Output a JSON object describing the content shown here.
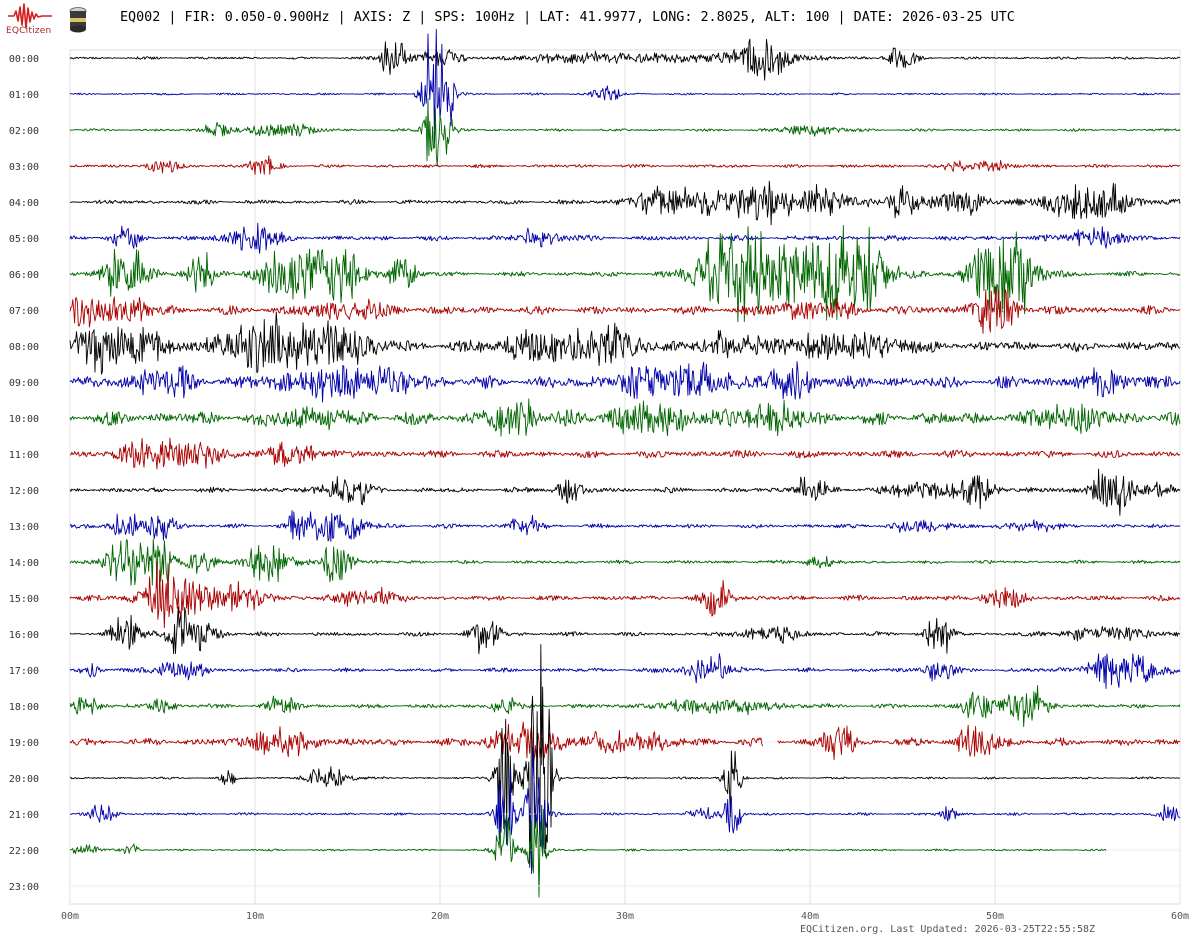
{
  "header": {
    "logo_text": "EQCitizen",
    "title": "EQ002 | FIR: 0.050-0.900Hz | AXIS: Z | SPS: 100Hz | LAT: 41.9977, LONG: 2.8025, ALT: 100 | DATE: 2026-03-25 UTC"
  },
  "footer": {
    "updated": "EQCitizen.org. Last Updated: 2026-03-25T22:55:58Z"
  },
  "chart_data": {
    "type": "line",
    "title": "EQ002 | FIR: 0.050-0.900Hz | AXIS: Z | SPS: 100Hz | LAT: 41.9977, LONG: 2.8025, ALT: 100 | DATE: 2026-03-25 UTC",
    "xlabel": "",
    "ylabel": "",
    "x_range_minutes": [
      0,
      60
    ],
    "x_ticks": [
      "00m",
      "10m",
      "20m",
      "30m",
      "40m",
      "50m",
      "60m"
    ],
    "grid": true,
    "color_cycle": [
      "#000000",
      "#0000aa",
      "#006600",
      "#aa0000"
    ],
    "rows": [
      {
        "label": "00:00",
        "noise": 1.5,
        "end": 60,
        "events": [
          [
            32,
            12,
            3,
            6,
            1
          ],
          [
            17.5,
            1,
            0.5,
            20,
            2
          ],
          [
            20,
            1.5,
            0.8,
            10,
            3
          ],
          [
            37.5,
            2,
            0.6,
            18,
            4
          ],
          [
            45,
            1,
            0.5,
            12,
            5
          ]
        ]
      },
      {
        "label": "01:00",
        "noise": 1.2,
        "end": 60,
        "events": [
          [
            19.5,
            0.6,
            0.3,
            75,
            6
          ],
          [
            20.3,
            0.5,
            0.3,
            55,
            7
          ],
          [
            29,
            1,
            0.5,
            8,
            8
          ]
        ]
      },
      {
        "label": "02:00",
        "noise": 1.5,
        "end": 60,
        "events": [
          [
            11.5,
            2,
            1,
            10,
            9
          ],
          [
            8,
            1,
            0.5,
            8,
            10
          ],
          [
            19.6,
            0.5,
            0.3,
            50,
            11
          ],
          [
            20.3,
            0.4,
            0.3,
            35,
            12
          ],
          [
            40,
            2,
            1,
            6,
            13
          ]
        ]
      },
      {
        "label": "03:00",
        "noise": 2,
        "end": 60,
        "events": [
          [
            49,
            2.5,
            0.8,
            7,
            14
          ],
          [
            10.5,
            1,
            0.5,
            10,
            15
          ],
          [
            5,
            1,
            0.5,
            8,
            16
          ]
        ]
      },
      {
        "label": "04:00",
        "noise": 2.5,
        "end": 60,
        "events": [
          [
            33,
            3,
            1.5,
            18,
            17
          ],
          [
            37,
            1.5,
            0.8,
            20,
            18
          ],
          [
            40,
            3,
            1.5,
            16,
            19
          ],
          [
            45,
            1,
            0.5,
            20,
            20
          ],
          [
            55,
            3,
            1.5,
            22,
            21
          ],
          [
            48,
            2,
            1,
            14,
            22
          ]
        ]
      },
      {
        "label": "05:00",
        "noise": 3,
        "end": 60,
        "events": [
          [
            10,
            1.5,
            0.8,
            16,
            23
          ],
          [
            3,
            1,
            0.5,
            10,
            24
          ],
          [
            25.5,
            1.5,
            0.8,
            8,
            25
          ],
          [
            55.5,
            2,
            1,
            10,
            26
          ]
        ]
      },
      {
        "label": "06:00",
        "noise": 3,
        "end": 60,
        "events": [
          [
            36,
            2.5,
            1.2,
            55,
            27
          ],
          [
            39,
            1.5,
            0.8,
            30,
            28
          ],
          [
            42,
            2.5,
            1.2,
            55,
            29
          ],
          [
            50.5,
            2,
            1,
            55,
            30
          ],
          [
            12,
            2,
            1,
            30,
            31
          ],
          [
            14.5,
            1.5,
            0.8,
            30,
            32
          ],
          [
            3,
            1.5,
            0.8,
            25,
            33
          ],
          [
            7,
            1,
            0.5,
            20,
            34
          ],
          [
            18,
            1,
            0.5,
            18,
            35
          ]
        ]
      },
      {
        "label": "07:00",
        "noise": 5,
        "end": 60,
        "events": [
          [
            2,
            3,
            1.5,
            14,
            36
          ],
          [
            15,
            3,
            1.5,
            10,
            37
          ],
          [
            40,
            3,
            1.5,
            10,
            38
          ],
          [
            50,
            1.5,
            0.8,
            25,
            39
          ]
        ]
      },
      {
        "label": "08:00",
        "noise": 6,
        "end": 60,
        "events": [
          [
            2.5,
            3,
            1.5,
            25,
            40
          ],
          [
            10,
            3,
            1.5,
            20,
            41
          ],
          [
            12.5,
            3,
            1.5,
            18,
            42
          ],
          [
            15,
            2,
            1,
            16,
            43
          ],
          [
            27,
            5,
            2,
            20,
            44
          ],
          [
            42,
            4,
            2,
            14,
            45
          ],
          [
            36,
            2,
            1,
            12,
            46
          ]
        ]
      },
      {
        "label": "09:00",
        "noise": 7,
        "end": 60,
        "events": [
          [
            15,
            5,
            2,
            16,
            47
          ],
          [
            32.5,
            4,
            2,
            16,
            48
          ],
          [
            39,
            2,
            1,
            14,
            49
          ],
          [
            5,
            2,
            1,
            12,
            50
          ],
          [
            56,
            2,
            1,
            10,
            51
          ]
        ]
      },
      {
        "label": "10:00",
        "noise": 8,
        "end": 60,
        "events": [
          [
            24,
            1.5,
            0.8,
            22,
            52
          ],
          [
            31.5,
            3,
            1.5,
            14,
            53
          ],
          [
            38,
            2,
            1,
            16,
            54
          ],
          [
            13,
            2,
            1,
            12,
            55
          ],
          [
            54,
            2,
            1,
            14,
            56
          ]
        ]
      },
      {
        "label": "11:00",
        "noise": 4.5,
        "end": 60,
        "events": [
          [
            6,
            3,
            1.5,
            14,
            57
          ],
          [
            12,
            2,
            1,
            10,
            58
          ],
          [
            4,
            1.5,
            0.8,
            8,
            59
          ]
        ]
      },
      {
        "label": "12:00",
        "noise": 3,
        "end": 60,
        "events": [
          [
            15,
            1.5,
            0.8,
            16,
            60
          ],
          [
            27,
            1,
            0.5,
            12,
            61
          ],
          [
            40,
            1,
            0.5,
            16,
            62
          ],
          [
            47,
            4,
            2,
            8,
            63
          ],
          [
            56.3,
            1.5,
            0.8,
            24,
            64
          ],
          [
            58.9,
            0.8,
            0.4,
            12,
            65
          ],
          [
            49,
            1,
            0.5,
            12,
            66
          ]
        ]
      },
      {
        "label": "13:00",
        "noise": 2.5,
        "end": 60,
        "events": [
          [
            14.5,
            1.5,
            0.8,
            24,
            67
          ],
          [
            12.5,
            1,
            0.5,
            15,
            68
          ],
          [
            3,
            1,
            0.5,
            14,
            69
          ],
          [
            5,
            1,
            0.5,
            16,
            70
          ],
          [
            24.5,
            1,
            0.5,
            10,
            71
          ],
          [
            46,
            2,
            1,
            6,
            72
          ],
          [
            52,
            1.5,
            0.8,
            6,
            73
          ]
        ]
      },
      {
        "label": "14:00",
        "noise": 2,
        "end": 60,
        "events": [
          [
            3,
            1.5,
            0.8,
            26,
            74
          ],
          [
            4.8,
            1,
            0.5,
            22,
            75
          ],
          [
            10.8,
            1.5,
            0.8,
            22,
            76
          ],
          [
            14.5,
            1,
            0.5,
            25,
            77
          ],
          [
            7,
            1,
            0.5,
            12,
            78
          ],
          [
            40.5,
            1,
            0.5,
            6,
            79
          ]
        ]
      },
      {
        "label": "15:00",
        "noise": 3,
        "end": 60,
        "events": [
          [
            6,
            2.5,
            1.2,
            24,
            80
          ],
          [
            9.5,
            1.5,
            0.8,
            16,
            81
          ],
          [
            4.8,
            1,
            0.5,
            16,
            82
          ],
          [
            16,
            2,
            1,
            10,
            83
          ],
          [
            35,
            1,
            0.5,
            18,
            84
          ],
          [
            50.5,
            1.5,
            0.8,
            10,
            85
          ]
        ]
      },
      {
        "label": "16:00",
        "noise": 2.5,
        "end": 60,
        "events": [
          [
            47,
            0.8,
            0.4,
            26,
            86
          ],
          [
            22.5,
            1,
            0.5,
            20,
            87
          ],
          [
            3,
            1,
            0.5,
            20,
            88
          ],
          [
            6.5,
            1.5,
            0.8,
            30,
            89
          ],
          [
            38,
            2,
            1,
            8,
            90
          ],
          [
            56,
            3,
            1.5,
            7,
            91
          ]
        ]
      },
      {
        "label": "17:00",
        "noise": 2.5,
        "end": 60,
        "events": [
          [
            57,
            2.5,
            1.2,
            20,
            92
          ],
          [
            34.5,
            1.5,
            0.8,
            16,
            93
          ],
          [
            6,
            1.5,
            0.8,
            12,
            94
          ],
          [
            47,
            1,
            0.5,
            12,
            95
          ],
          [
            1,
            0.6,
            0.3,
            10,
            96
          ]
        ]
      },
      {
        "label": "18:00",
        "noise": 2.5,
        "end": 60,
        "events": [
          [
            35,
            4,
            2,
            8,
            97
          ],
          [
            51.5,
            1.5,
            0.8,
            22,
            98
          ],
          [
            0.8,
            1,
            0.5,
            12,
            99
          ],
          [
            5,
            1,
            0.5,
            8,
            100
          ],
          [
            11.5,
            1,
            0.5,
            10,
            101
          ],
          [
            49,
            1,
            0.5,
            14,
            102
          ],
          [
            23.5,
            1,
            0.5,
            10,
            103
          ]
        ]
      },
      {
        "label": "19:00",
        "noise": 4.5,
        "end": 60,
        "gap": [
          37.5,
          38.2
        ],
        "events": [
          [
            24.5,
            2.5,
            1.2,
            20,
            104
          ],
          [
            11.5,
            2.5,
            1.2,
            14,
            105
          ],
          [
            30,
            3,
            1.5,
            10,
            106
          ],
          [
            49,
            1.5,
            0.8,
            16,
            107
          ],
          [
            41.5,
            1.2,
            0.6,
            16,
            108
          ]
        ]
      },
      {
        "label": "20:00",
        "noise": 1.2,
        "end": 60,
        "events": [
          [
            23.5,
            0.6,
            0.3,
            85,
            109
          ],
          [
            25.2,
            0.7,
            0.3,
            95,
            110
          ],
          [
            25.7,
            0.5,
            0.3,
            80,
            111
          ],
          [
            14,
            1.5,
            0.8,
            12,
            112
          ],
          [
            8.6,
            0.5,
            0.3,
            8,
            113
          ],
          [
            35.8,
            0.4,
            0.3,
            50,
            114
          ]
        ]
      },
      {
        "label": "21:00",
        "noise": 1.5,
        "end": 60,
        "events": [
          [
            1.8,
            0.8,
            0.4,
            16,
            115
          ],
          [
            23.5,
            0.6,
            0.3,
            60,
            116
          ],
          [
            25.2,
            0.7,
            0.3,
            90,
            117
          ],
          [
            35.8,
            0.5,
            0.3,
            40,
            118
          ],
          [
            47.5,
            0.5,
            0.3,
            10,
            119
          ],
          [
            59.5,
            0.8,
            0.4,
            10,
            120
          ],
          [
            34,
            1,
            0.5,
            6,
            121
          ]
        ]
      },
      {
        "label": "22:00",
        "noise": 1.2,
        "end": 56,
        "events": [
          [
            23.5,
            0.5,
            0.3,
            50,
            122
          ],
          [
            25.3,
            0.6,
            0.3,
            60,
            123
          ],
          [
            3.3,
            0.4,
            0.3,
            10,
            124
          ],
          [
            0.8,
            1,
            0.5,
            5,
            125
          ]
        ]
      },
      {
        "label": "23:00",
        "noise": 0,
        "end": 0,
        "events": []
      }
    ]
  }
}
